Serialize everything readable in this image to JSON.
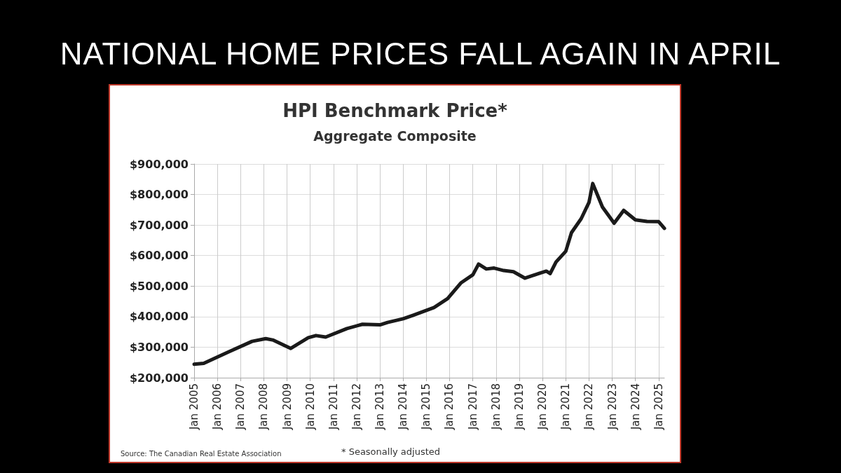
{
  "chart_data": {
    "type": "line",
    "title": "NATIONAL HOME PRICES FALL AGAIN IN APRIL",
    "subtitle": "HPI Benchmark Price*",
    "annotations": [
      "Aggregate Composite",
      "* Seasonally adjusted",
      "Source: The Canadian Real Estate Association"
    ],
    "x": [
      "2005-01",
      "2005-06",
      "2006-07",
      "2007-07",
      "2008-02",
      "2008-06",
      "2009-03",
      "2009-12",
      "2010-04",
      "2010-09",
      "2011-08",
      "2012-04",
      "2013-01",
      "2013-05",
      "2014-01",
      "2014-06",
      "2015-05",
      "2015-12",
      "2016-07",
      "2017-01",
      "2017-04",
      "2017-08",
      "2017-12",
      "2018-05",
      "2018-10",
      "2019-04",
      "2019-11",
      "2020-03",
      "2020-05",
      "2020-08",
      "2021-01",
      "2021-04",
      "2021-09",
      "2022-01",
      "2022-03",
      "2022-08",
      "2023-02",
      "2023-07",
      "2024-01",
      "2024-07",
      "2025-01",
      "2025-04"
    ],
    "series": [
      {
        "color": "#1a1a1a",
        "values": [
          244000,
          247000,
          285000,
          319000,
          328000,
          323000,
          296000,
          331000,
          338000,
          333000,
          361000,
          375000,
          373000,
          381000,
          393000,
          404000,
          430000,
          459000,
          511000,
          537000,
          572000,
          556000,
          559000,
          551000,
          547000,
          526000,
          541000,
          549000,
          541000,
          579000,
          614000,
          675000,
          721000,
          774000,
          836000,
          759000,
          706000,
          748000,
          717000,
          712000,
          711000,
          689000
        ]
      }
    ],
    "xlim": [
      "2005-01",
      "2025-04"
    ],
    "xticks": [
      {
        "value": "2005-01",
        "label": "Jan 2005"
      },
      {
        "value": "2006-01",
        "label": "Jan 2006"
      },
      {
        "value": "2007-01",
        "label": "Jan 2007"
      },
      {
        "value": "2008-01",
        "label": "Jan 2008"
      },
      {
        "value": "2009-01",
        "label": "Jan 2009"
      },
      {
        "value": "2010-01",
        "label": "Jan 2010"
      },
      {
        "value": "2011-01",
        "label": "Jan 2011"
      },
      {
        "value": "2012-01",
        "label": "Jan 2012"
      },
      {
        "value": "2013-01",
        "label": "Jan 2013"
      },
      {
        "value": "2014-01",
        "label": "Jan 2014"
      },
      {
        "value": "2015-01",
        "label": "Jan 2015"
      },
      {
        "value": "2016-01",
        "label": "Jan 2016"
      },
      {
        "value": "2017-01",
        "label": "Jan 2017"
      },
      {
        "value": "2018-01",
        "label": "Jan 2018"
      },
      {
        "value": "2019-01",
        "label": "Jan 2019"
      },
      {
        "value": "2020-01",
        "label": "Jan 2020"
      },
      {
        "value": "2021-01",
        "label": "Jan 2021"
      },
      {
        "value": "2022-01",
        "label": "Jan 2022"
      },
      {
        "value": "2023-01",
        "label": "Jan 2023"
      },
      {
        "value": "2024-01",
        "label": "Jan 2024"
      },
      {
        "value": "2025-01",
        "label": "Jan 2025"
      }
    ],
    "ylim": [
      200000,
      900000
    ],
    "yticks": [
      {
        "value": 200000,
        "label": "$200,000"
      },
      {
        "value": 300000,
        "label": "$300,000"
      },
      {
        "value": 400000,
        "label": "$400,000"
      },
      {
        "value": 500000,
        "label": "$500,000"
      },
      {
        "value": 600000,
        "label": "$600,000"
      },
      {
        "value": 700000,
        "label": "$700,000"
      },
      {
        "value": 800000,
        "label": "$800,000"
      },
      {
        "value": 900000,
        "label": "$900,000"
      }
    ],
    "grid": true,
    "marker": "none",
    "line_style": "solid"
  }
}
